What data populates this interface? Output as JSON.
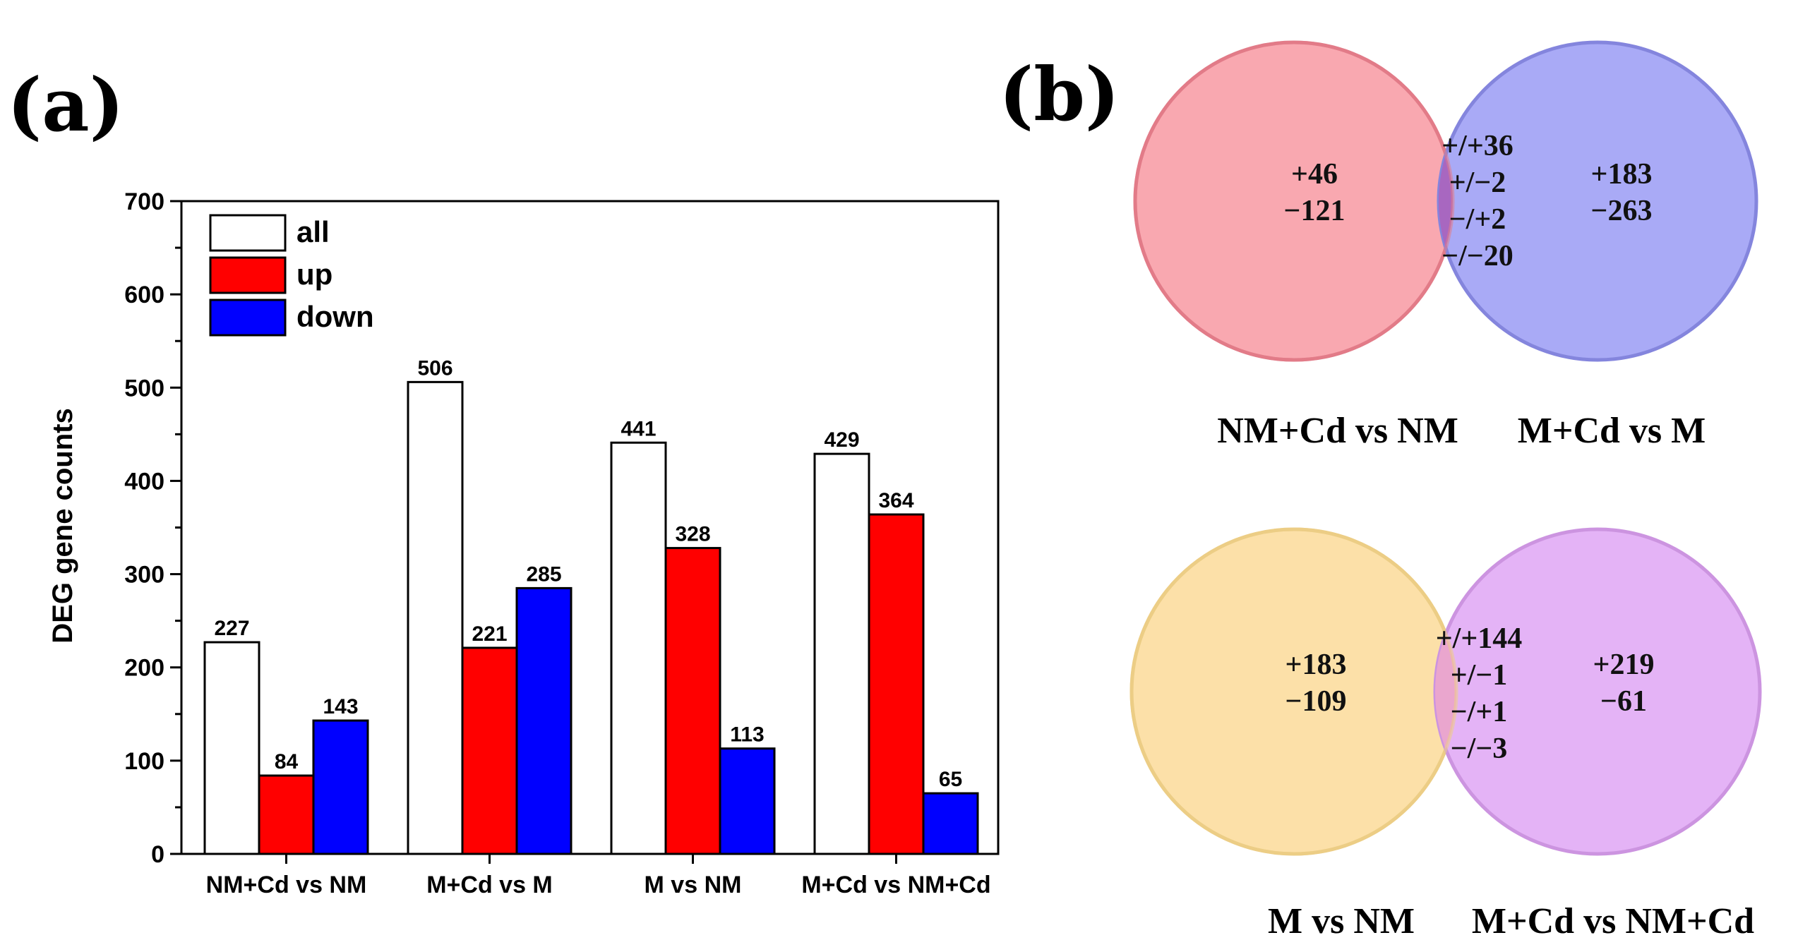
{
  "panels": {
    "a": "(a)",
    "b": "(b)"
  },
  "chart_data": {
    "type": "bar",
    "title": "",
    "xlabel": "",
    "ylabel": "DEG gene counts",
    "ylim": [
      0,
      700
    ],
    "yticks": [
      0,
      100,
      200,
      300,
      400,
      500,
      600,
      700
    ],
    "categories": [
      "NM+Cd vs NM",
      "M+Cd vs M",
      "M vs NM",
      "M+Cd vs NM+Cd"
    ],
    "series": [
      {
        "name": "all",
        "color": "#ffffff",
        "values": [
          227,
          506,
          441,
          429
        ]
      },
      {
        "name": "up",
        "color": "#ff0000",
        "values": [
          84,
          221,
          328,
          364
        ]
      },
      {
        "name": "down",
        "color": "#0000ff",
        "values": [
          143,
          285,
          113,
          65
        ]
      }
    ],
    "legend": "top-left"
  },
  "venn": [
    {
      "left": {
        "name": "NM+Cd vs NM",
        "color": "#f9a8b0",
        "stroke": "#e27b88",
        "lines": [
          "+46",
          "−121"
        ]
      },
      "right": {
        "name": "M+Cd vs M",
        "color": "#a9aaf6",
        "stroke": "#8485dd",
        "lines": [
          "+183",
          "−263"
        ]
      },
      "overlap": {
        "color": "#a867c0",
        "lines": [
          "+/+36",
          "+/−2",
          "−/+2",
          "−/−20"
        ]
      }
    },
    {
      "left": {
        "name": "M vs NM",
        "color": "#fce0a8",
        "stroke": "#eccd85",
        "lines": [
          "+183",
          "−109"
        ]
      },
      "right": {
        "name": "M+Cd vs NM+Cd",
        "color": "#e4b3f6",
        "stroke": "#cc94e0",
        "lines": [
          "+219",
          "−61"
        ]
      },
      "overlap": {
        "color": "#eaa6ce",
        "lines": [
          "+/+144",
          "+/−1",
          "−/+1",
          "−/−3"
        ]
      }
    }
  ]
}
